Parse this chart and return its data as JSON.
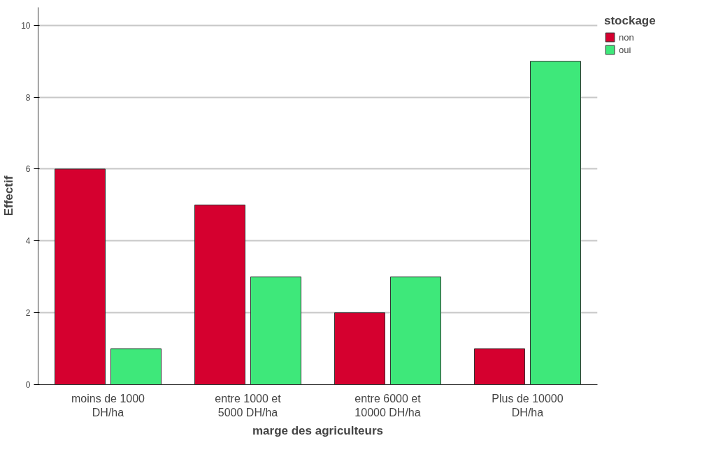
{
  "chart_data": {
    "type": "bar",
    "xlabel": "marge des agriculteurs",
    "ylabel": "Effectif",
    "legend_title": "stockage",
    "categories": [
      "moins de 1000\nDH/ha",
      "entre 1000 et\n5000 DH/ha",
      "entre 6000 et\n10000 DH/ha",
      "Plus de 10000\nDH/ha"
    ],
    "series": [
      {
        "name": "non",
        "color": "#d5002f",
        "values": [
          6,
          5,
          2,
          1
        ]
      },
      {
        "name": "oui",
        "color": "#3ee87a",
        "values": [
          1,
          3,
          3,
          9
        ]
      }
    ],
    "ylim": [
      0,
      10.5
    ],
    "yticks": [
      0,
      2,
      4,
      6,
      8,
      10
    ],
    "grid": "y",
    "legend": "top right"
  }
}
